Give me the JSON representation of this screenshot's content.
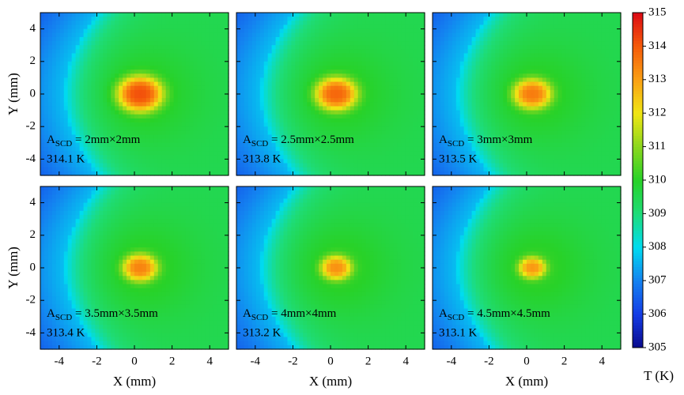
{
  "chart_data": [
    {
      "type": "heatmap",
      "label_main": "A",
      "label_sub": "SCD",
      "label_rest": " = 2mm×2mm",
      "peak": 314.1,
      "peak_label": "314.1 K",
      "ylabel": "Y (mm)",
      "xlim": [
        -5,
        5
      ],
      "ylim": [
        -5,
        5
      ],
      "xticks": [
        -4,
        -2,
        0,
        2,
        4
      ],
      "yticks": [
        -4,
        -2,
        0,
        2,
        4
      ]
    },
    {
      "type": "heatmap",
      "label_main": "A",
      "label_sub": "SCD",
      "label_rest": " = 2.5mm×2.5mm",
      "peak": 313.8,
      "peak_label": "313.8 K",
      "xlim": [
        -5,
        5
      ],
      "ylim": [
        -5,
        5
      ],
      "xticks": [
        -4,
        -2,
        0,
        2,
        4
      ],
      "yticks": [
        -4,
        -2,
        0,
        2,
        4
      ]
    },
    {
      "type": "heatmap",
      "label_main": "A",
      "label_sub": "SCD",
      "label_rest": " = 3mm×3mm",
      "peak": 313.5,
      "peak_label": "313.5 K",
      "xlim": [
        -5,
        5
      ],
      "ylim": [
        -5,
        5
      ],
      "xticks": [
        -4,
        -2,
        0,
        2,
        4
      ],
      "yticks": [
        -4,
        -2,
        0,
        2,
        4
      ]
    },
    {
      "type": "heatmap",
      "label_main": "A",
      "label_sub": "SCD",
      "label_rest": " = 3.5mm×3.5mm",
      "peak": 313.4,
      "peak_label": "313.4 K",
      "xlabel": "X (mm)",
      "ylabel": "Y (mm)",
      "xlim": [
        -5,
        5
      ],
      "ylim": [
        -5,
        5
      ],
      "xticks": [
        -4,
        -2,
        0,
        2,
        4
      ],
      "yticks": [
        -4,
        -2,
        0,
        2,
        4
      ]
    },
    {
      "type": "heatmap",
      "label_main": "A",
      "label_sub": "SCD",
      "label_rest": " = 4mm×4mm",
      "peak": 313.2,
      "peak_label": "313.2 K",
      "xlabel": "X (mm)",
      "xlim": [
        -5,
        5
      ],
      "ylim": [
        -5,
        5
      ],
      "xticks": [
        -4,
        -2,
        0,
        2,
        4
      ],
      "yticks": [
        -4,
        -2,
        0,
        2,
        4
      ]
    },
    {
      "type": "heatmap",
      "label_main": "A",
      "label_sub": "SCD",
      "label_rest": " = 4.5mm×4.5mm",
      "peak": 313.1,
      "peak_label": "313.1 K",
      "xlabel": "X (mm)",
      "xlim": [
        -5,
        5
      ],
      "ylim": [
        -5,
        5
      ],
      "xticks": [
        -4,
        -2,
        0,
        2,
        4
      ],
      "yticks": [
        -4,
        -2,
        0,
        2,
        4
      ]
    }
  ],
  "colorbar": {
    "label": "T (K)",
    "lim": [
      305,
      315
    ],
    "ticks": [
      305,
      306,
      307,
      308,
      309,
      310,
      311,
      312,
      313,
      314,
      315
    ]
  }
}
